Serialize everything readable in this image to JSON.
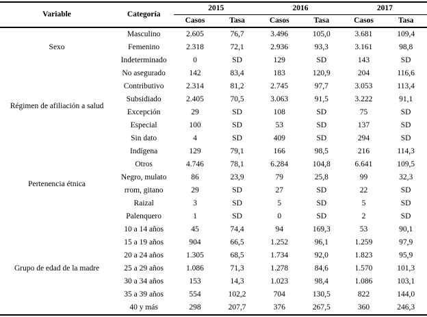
{
  "table": {
    "header": {
      "variable": "Variable",
      "categoria": "Categoría",
      "years": [
        "2015",
        "2016",
        "2017"
      ],
      "subheaders": [
        "Casos",
        "Tasa"
      ]
    },
    "groups": [
      {
        "variable": "Sexo",
        "rows": [
          [
            "Masculino",
            "2.605",
            "76,7",
            "3.496",
            "105,0",
            "3.681",
            "109,4"
          ],
          [
            "Femenino",
            "2.318",
            "72,1",
            "2.936",
            "93,3",
            "3.161",
            "98,8"
          ],
          [
            "Indeterminado",
            "0",
            "SD",
            "129",
            "SD",
            "143",
            "SD"
          ]
        ]
      },
      {
        "variable": "Régimen de afiliación a salud",
        "rows": [
          [
            "No asegurado",
            "142",
            "83,4",
            "183",
            "120,9",
            "204",
            "116,6"
          ],
          [
            "Contributivo",
            "2.314",
            "81,2",
            "2.745",
            "97,7",
            "3.053",
            "113,4"
          ],
          [
            "Subsidiado",
            "2.405",
            "70,5",
            "3.063",
            "91,5",
            "3.222",
            "91,1"
          ],
          [
            "Excepción",
            "29",
            "SD",
            "108",
            "SD",
            "75",
            "SD"
          ],
          [
            "Especial",
            "100",
            "SD",
            "53",
            "SD",
            "137",
            "SD"
          ],
          [
            "Sin dato",
            "4",
            "SD",
            "409",
            "SD",
            "294",
            "SD"
          ]
        ]
      },
      {
        "variable": "Pertenencia étnica",
        "rows": [
          [
            "Indígena",
            "129",
            "79,1",
            "166",
            "98,5",
            "216",
            "114,3"
          ],
          [
            "Otros",
            "4.746",
            "78,1",
            "6.284",
            "104,8",
            "6.641",
            "109,5"
          ],
          [
            "Negro, mulato",
            "86",
            "23,9",
            "79",
            "25,8",
            "99",
            "32,3"
          ],
          [
            "rrom, gitano",
            "29",
            "SD",
            "27",
            "SD",
            "22",
            "SD"
          ],
          [
            "Raizal",
            "3",
            "SD",
            "5",
            "SD",
            "5",
            "SD"
          ],
          [
            "Palenquero",
            "1",
            "SD",
            "0",
            "SD",
            "2",
            "SD"
          ]
        ]
      },
      {
        "variable": "Grupo de edad de la madre",
        "rows": [
          [
            "10 a 14 años",
            "45",
            "74,4",
            "94",
            "169,3",
            "53",
            "90,1"
          ],
          [
            "15 a 19 años",
            "904",
            "66,5",
            "1.252",
            "96,1",
            "1.259",
            "97,9"
          ],
          [
            "20 a 24 años",
            "1.305",
            "68,5",
            "1.734",
            "92,0",
            "1.823",
            "95,9"
          ],
          [
            "25 a 29 años",
            "1.086",
            "71,3",
            "1.278",
            "84,6",
            "1.570",
            "101,3"
          ],
          [
            "30 a 34 años",
            "153",
            "14,3",
            "1.023",
            "98,4",
            "1.086",
            "103,1"
          ],
          [
            "35 a 39 años",
            "554",
            "102,2",
            "704",
            "130,5",
            "822",
            "144,0"
          ],
          [
            "40 y más",
            "298",
            "207,7",
            "376",
            "267,5",
            "360",
            "246,3"
          ]
        ]
      }
    ]
  }
}
